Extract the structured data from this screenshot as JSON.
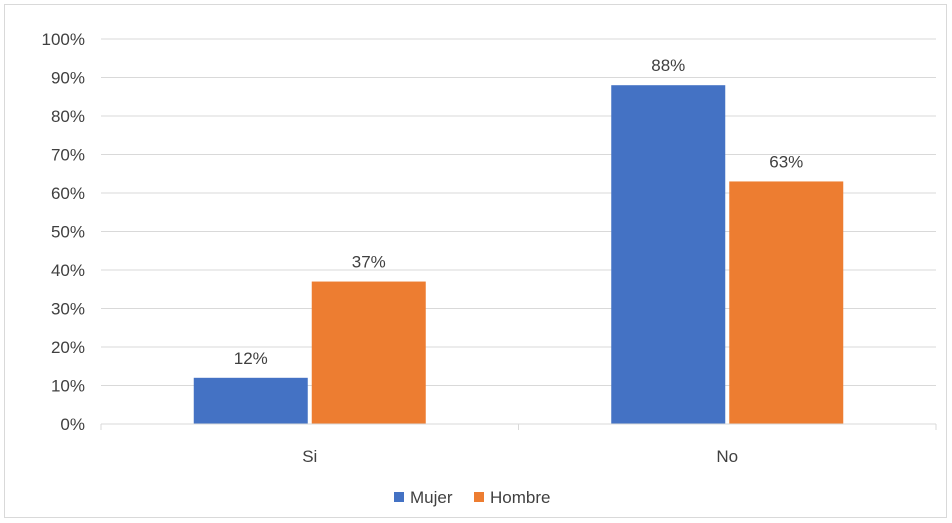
{
  "chart_data": {
    "type": "bar",
    "categories": [
      "Si",
      "No"
    ],
    "series": [
      {
        "name": "Mujer",
        "values": [
          12,
          88
        ],
        "labels": [
          "12%",
          "88%"
        ],
        "color": "#4472C4"
      },
      {
        "name": "Hombre",
        "values": [
          37,
          63
        ],
        "labels": [
          "37%",
          "63%"
        ],
        "color": "#ED7D31"
      }
    ],
    "ylim": [
      0,
      100
    ],
    "yticks": [
      "0%",
      "10%",
      "20%",
      "30%",
      "40%",
      "50%",
      "60%",
      "70%",
      "80%",
      "90%",
      "100%"
    ],
    "grid": true,
    "legend": "bottom",
    "title": "",
    "xlabel": "",
    "ylabel": ""
  }
}
